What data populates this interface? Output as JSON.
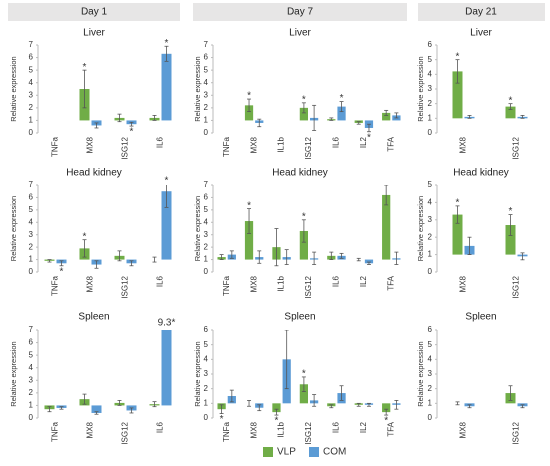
{
  "headers": [
    "Day 1",
    "Day 7",
    "Day 21"
  ],
  "chart_data": [
    {
      "type": "bar",
      "title": "Liver",
      "ylabel": "Relative expression",
      "bar_base": 1,
      "ylim": [
        0,
        7
      ],
      "yticks": [
        0,
        1,
        2,
        3,
        4,
        5,
        6,
        7
      ],
      "categories": [
        "TNFa",
        "MX8",
        "ISG12",
        "IL6"
      ],
      "series": [
        {
          "name": "VLP",
          "color": "#70ad47",
          "values": [
            null,
            3.5,
            1.2,
            1.2
          ],
          "errors": [
            null,
            1.5,
            0.3,
            0.2
          ],
          "annotations": [
            null,
            "*",
            null,
            null
          ]
        },
        {
          "name": "COM",
          "color": "#5b9bd5",
          "values": [
            null,
            0.6,
            0.7,
            6.3
          ],
          "errors": [
            null,
            0.2,
            0.15,
            0.6
          ],
          "annotations": [
            null,
            null,
            "*",
            "*"
          ]
        }
      ]
    },
    {
      "type": "bar",
      "title": "Liver",
      "ylabel": "Relative expression",
      "bar_base": 1,
      "ylim": [
        0,
        7
      ],
      "yticks": [
        0,
        1,
        2,
        3,
        4,
        5,
        6,
        7
      ],
      "categories": [
        "TNFa",
        "MX8",
        "IL1b",
        "ISG12",
        "IL6",
        "IL2",
        "TFA"
      ],
      "series": [
        {
          "name": "VLP",
          "color": "#70ad47",
          "values": [
            null,
            2.2,
            null,
            2.0,
            1.1,
            0.8,
            1.6
          ],
          "errors": [
            null,
            0.5,
            null,
            0.4,
            0.1,
            0.1,
            0.2
          ],
          "annotations": [
            null,
            "*",
            null,
            "*",
            null,
            null,
            null
          ]
        },
        {
          "name": "COM",
          "color": "#5b9bd5",
          "values": [
            null,
            0.8,
            null,
            1.2,
            2.1,
            0.4,
            1.4
          ],
          "errors": [
            null,
            0.3,
            null,
            1.0,
            0.4,
            0.3,
            0.2
          ],
          "annotations": [
            null,
            null,
            null,
            null,
            "*",
            "*",
            null
          ]
        }
      ]
    },
    {
      "type": "bar",
      "title": "Liver",
      "ylabel": "Relative expression",
      "bar_base": 1,
      "ylim": [
        0,
        6
      ],
      "yticks": [
        0,
        1,
        2,
        3,
        4,
        5,
        6
      ],
      "categories": [
        "MX8",
        "ISG12"
      ],
      "series": [
        {
          "name": "VLP",
          "color": "#70ad47",
          "values": [
            4.2,
            1.8
          ],
          "errors": [
            0.8,
            0.2
          ],
          "annotations": [
            "*",
            "*"
          ]
        },
        {
          "name": "COM",
          "color": "#5b9bd5",
          "values": [
            1.1,
            1.1
          ],
          "errors": [
            0.1,
            0.1
          ],
          "annotations": [
            null,
            null
          ]
        }
      ]
    },
    {
      "type": "bar",
      "title": "Head kidney",
      "ylabel": "Relative expression",
      "bar_base": 1,
      "ylim": [
        0,
        7
      ],
      "yticks": [
        0,
        1,
        2,
        3,
        4,
        5,
        6,
        7
      ],
      "categories": [
        "TNFa",
        "MX8",
        "ISG12",
        "IL6"
      ],
      "series": [
        {
          "name": "VLP",
          "color": "#70ad47",
          "values": [
            0.9,
            1.9,
            1.3,
            1.0
          ],
          "errors": [
            0.1,
            0.7,
            0.4,
            0.2
          ],
          "annotations": [
            null,
            "*",
            null,
            null
          ]
        },
        {
          "name": "COM",
          "color": "#5b9bd5",
          "values": [
            0.7,
            0.6,
            0.7,
            6.5
          ],
          "errors": [
            0.2,
            0.3,
            0.2,
            1.3
          ],
          "annotations": [
            "*",
            null,
            null,
            "*"
          ]
        }
      ]
    },
    {
      "type": "bar",
      "title": "Head kidney",
      "ylabel": "Relative expression",
      "bar_base": 1,
      "ylim": [
        0,
        7
      ],
      "yticks": [
        0,
        1,
        2,
        3,
        4,
        5,
        6,
        7
      ],
      "categories": [
        "TNFa",
        "MX8",
        "IL1b",
        "ISG12",
        "IL6",
        "IL2",
        "TFA"
      ],
      "series": [
        {
          "name": "VLP",
          "color": "#70ad47",
          "values": [
            1.2,
            4.1,
            2.0,
            3.3,
            1.3,
            1.0,
            6.2
          ],
          "errors": [
            0.2,
            1.0,
            1.5,
            0.9,
            0.3,
            0.1,
            0.8
          ],
          "annotations": [
            null,
            "*",
            null,
            "*",
            null,
            null,
            null
          ]
        },
        {
          "name": "COM",
          "color": "#5b9bd5",
          "values": [
            1.4,
            1.2,
            1.2,
            1.1,
            1.3,
            0.7,
            1.1
          ],
          "errors": [
            0.3,
            0.5,
            0.6,
            0.5,
            0.2,
            0.1,
            0.5
          ],
          "annotations": [
            null,
            null,
            null,
            null,
            null,
            null,
            null
          ]
        }
      ]
    },
    {
      "type": "bar",
      "title": "Head kidney",
      "ylabel": "Relative expression",
      "bar_base": 1,
      "ylim": [
        0,
        5
      ],
      "yticks": [
        0,
        1,
        2,
        3,
        4,
        5
      ],
      "categories": [
        "MX8",
        "ISG12"
      ],
      "series": [
        {
          "name": "VLP",
          "color": "#70ad47",
          "values": [
            3.3,
            2.7
          ],
          "errors": [
            0.5,
            0.6
          ],
          "annotations": [
            "*",
            "*"
          ]
        },
        {
          "name": "COM",
          "color": "#5b9bd5",
          "values": [
            1.5,
            0.9
          ],
          "errors": [
            0.5,
            0.2
          ],
          "annotations": [
            null,
            null
          ]
        }
      ]
    },
    {
      "type": "bar",
      "title": "Spleen",
      "ylabel": "Relative expression",
      "bar_base": 1,
      "ylim": [
        0,
        7
      ],
      "yticks": [
        0,
        1,
        2,
        3,
        4,
        5,
        6,
        7
      ],
      "categories": [
        "TNFa",
        "MX8",
        "ISG12",
        "IL6"
      ],
      "series": [
        {
          "name": "VLP",
          "color": "#70ad47",
          "values": [
            0.7,
            1.5,
            1.2,
            1.1
          ],
          "errors": [
            0.2,
            0.4,
            0.2,
            0.2
          ],
          "annotations": [
            null,
            null,
            null,
            null
          ]
        },
        {
          "name": "COM",
          "color": "#5b9bd5",
          "values": [
            0.8,
            0.4,
            0.6,
            9.3
          ],
          "errors": [
            0.1,
            0.1,
            0.2,
            null
          ],
          "value_labels": [
            null,
            null,
            null,
            "9.3*"
          ],
          "annotations": [
            null,
            null,
            null,
            null
          ]
        }
      ]
    },
    {
      "type": "bar",
      "title": "Spleen",
      "ylabel": "Relative expression",
      "bar_base": 1,
      "ylim": [
        0,
        6
      ],
      "yticks": [
        0,
        1,
        2,
        3,
        4,
        5,
        6
      ],
      "categories": [
        "TNFa",
        "MX8",
        "IL1b",
        "ISG12",
        "IL6",
        "IL2",
        "TFA"
      ],
      "series": [
        {
          "name": "VLP",
          "color": "#70ad47",
          "values": [
            0.6,
            1.0,
            0.4,
            2.3,
            0.8,
            0.9,
            0.4
          ],
          "errors": [
            0.3,
            0.2,
            0.2,
            0.5,
            0.1,
            0.1,
            0.2
          ],
          "annotations": [
            "*",
            null,
            "*",
            "*",
            null,
            null,
            "*"
          ]
        },
        {
          "name": "COM",
          "color": "#5b9bd5",
          "values": [
            1.5,
            0.7,
            4.0,
            1.2,
            1.7,
            0.9,
            0.9
          ],
          "errors": [
            0.4,
            0.2,
            2.0,
            0.4,
            0.5,
            0.1,
            0.3
          ],
          "annotations": [
            null,
            null,
            null,
            null,
            null,
            null,
            null
          ]
        }
      ]
    },
    {
      "type": "bar",
      "title": "Spleen",
      "ylabel": "Relative expression",
      "bar_base": 1,
      "ylim": [
        0,
        6
      ],
      "yticks": [
        0,
        1,
        2,
        3,
        4,
        5,
        6
      ],
      "categories": [
        "MX8",
        "ISG12"
      ],
      "series": [
        {
          "name": "VLP",
          "color": "#70ad47",
          "values": [
            1.0,
            1.7
          ],
          "errors": [
            0.1,
            0.5
          ],
          "annotations": [
            null,
            null
          ]
        },
        {
          "name": "COM",
          "color": "#5b9bd5",
          "values": [
            0.8,
            0.8
          ],
          "errors": [
            0.1,
            0.1
          ],
          "annotations": [
            null,
            null
          ]
        }
      ]
    }
  ]
}
